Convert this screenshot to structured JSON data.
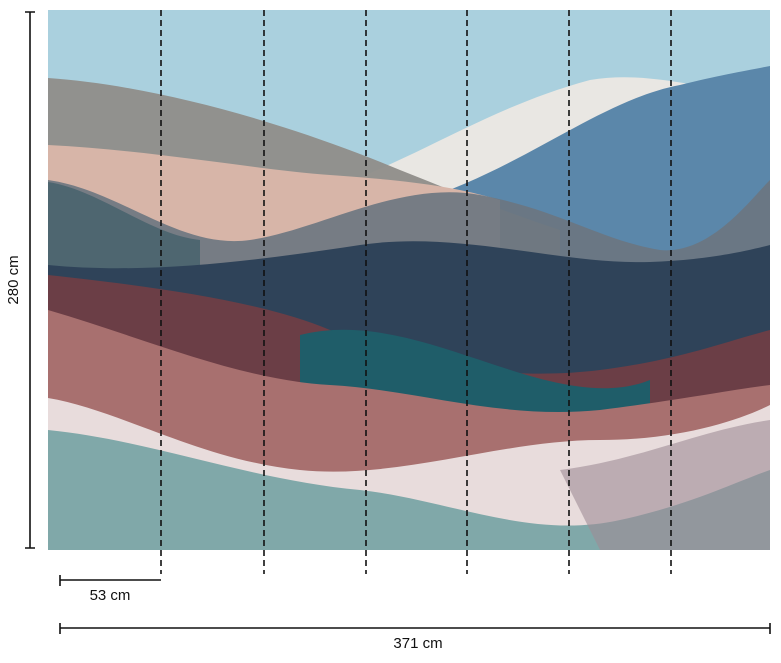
{
  "dimensions": {
    "height": "280 cm",
    "panel_width": "53 cm",
    "total_width": "371 cm"
  }
}
